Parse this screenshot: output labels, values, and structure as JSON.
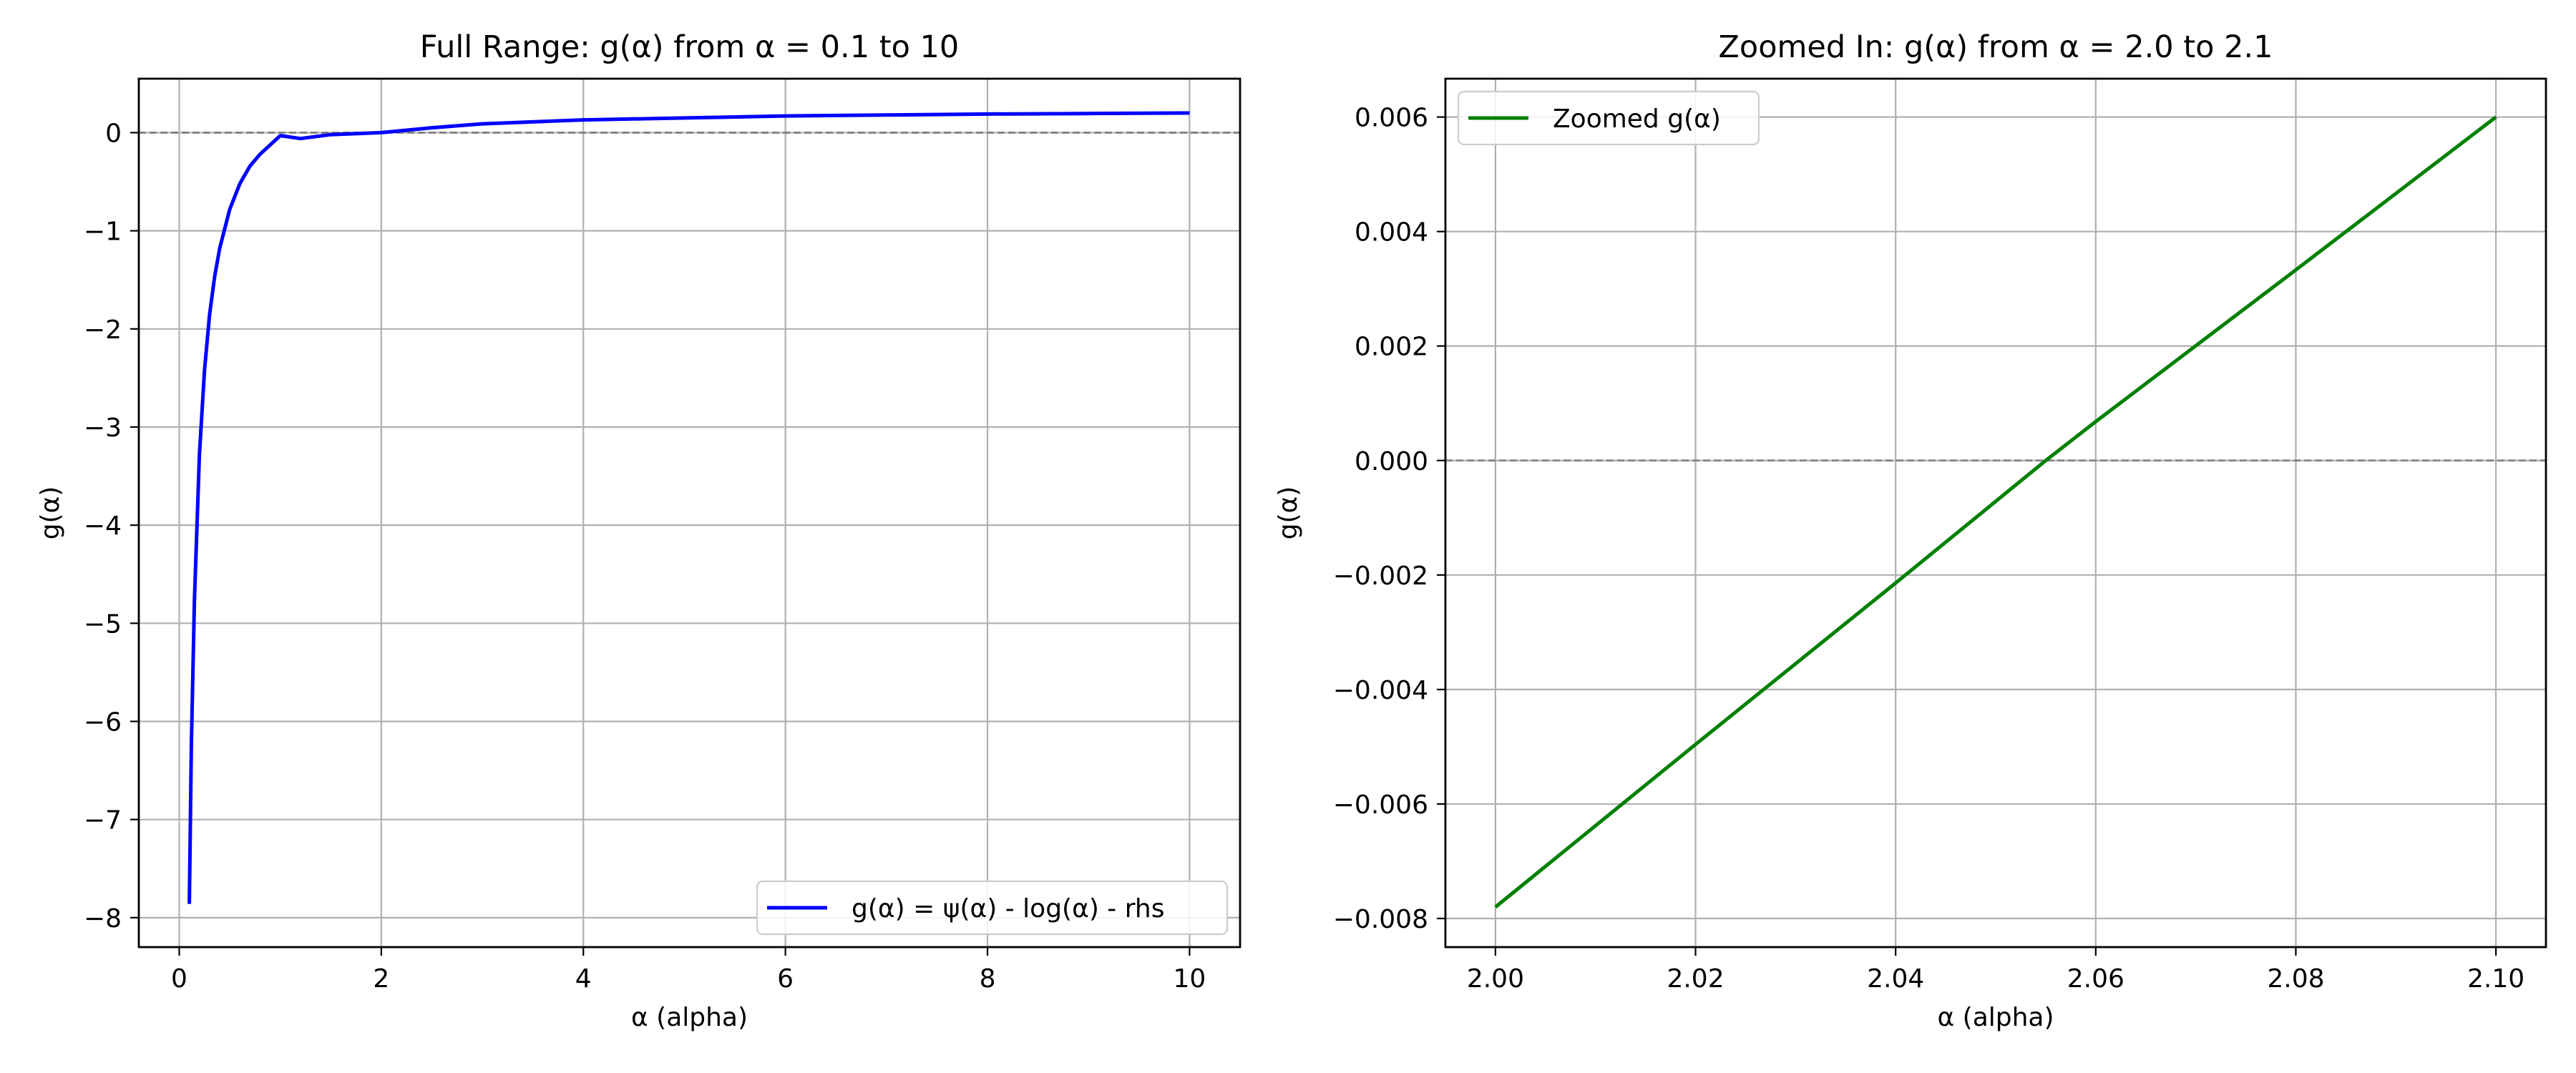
{
  "chart_data": [
    {
      "type": "line",
      "title": "Full Range: g(α) from α = 0.1 to 10",
      "xlabel": "α (alpha)",
      "ylabel": "g(α)",
      "xlim": [
        -0.4,
        10.5
      ],
      "ylim": [
        -8.3,
        0.55
      ],
      "xticks": [
        0,
        2,
        4,
        6,
        8,
        10
      ],
      "xtick_labels": [
        "0",
        "2",
        "4",
        "6",
        "8",
        "10"
      ],
      "yticks": [
        0,
        -1,
        -2,
        -3,
        -4,
        -5,
        -6,
        -7,
        -8
      ],
      "ytick_labels": [
        "0",
        "−1",
        "−2",
        "−3",
        "−4",
        "−5",
        "−6",
        "−7",
        "−8"
      ],
      "grid": true,
      "reference_line": {
        "y": 0,
        "style": "dashed",
        "color": "#808080"
      },
      "legend": "lower-right",
      "series": [
        {
          "name": "g(α) = ψ(α) - log(α) - rhs",
          "color": "#0000ff",
          "x": [
            0.1,
            0.12,
            0.15,
            0.2,
            0.25,
            0.3,
            0.35,
            0.4,
            0.5,
            0.6,
            0.7,
            0.8,
            1.0,
            1.2,
            1.5,
            2.0,
            2.5,
            3.0,
            4.0,
            5.0,
            6.0,
            7.0,
            8.0,
            9.0,
            10.0
          ],
          "y": [
            -7.86,
            -6.25,
            -4.77,
            -3.28,
            -2.42,
            -1.86,
            -1.47,
            -1.18,
            -0.78,
            -0.52,
            -0.34,
            -0.22,
            -0.03,
            -0.06,
            -0.02,
            0.0,
            0.05,
            0.09,
            0.13,
            0.15,
            0.17,
            0.18,
            0.19,
            0.195,
            0.2
          ]
        }
      ]
    },
    {
      "type": "line",
      "title": "Zoomed In: g(α) from α = 2.0 to 2.1",
      "xlabel": "α (alpha)",
      "ylabel": "g(α)",
      "xlim": [
        1.995,
        2.105
      ],
      "ylim": [
        -0.0085,
        0.00667
      ],
      "xticks": [
        2.0,
        2.02,
        2.04,
        2.06,
        2.08,
        2.1
      ],
      "xtick_labels": [
        "2.00",
        "2.02",
        "2.04",
        "2.06",
        "2.08",
        "2.10"
      ],
      "yticks": [
        0.006,
        0.004,
        0.002,
        0.0,
        -0.002,
        -0.004,
        -0.006,
        -0.008
      ],
      "ytick_labels": [
        "0.006",
        "0.004",
        "0.002",
        "0.000",
        "−0.002",
        "−0.004",
        "−0.006",
        "−0.008"
      ],
      "grid": true,
      "reference_line": {
        "y": 0,
        "style": "dashed",
        "color": "#808080"
      },
      "legend": "upper-left",
      "series": [
        {
          "name": "Zoomed g(α)",
          "color": "#008000",
          "x": [
            2.0,
            2.02,
            2.04,
            2.055,
            2.06,
            2.08,
            2.1
          ],
          "y": [
            -0.0078,
            -0.00496,
            -0.00214,
            0.0,
            0.00068,
            0.00333,
            0.006
          ]
        }
      ]
    }
  ]
}
